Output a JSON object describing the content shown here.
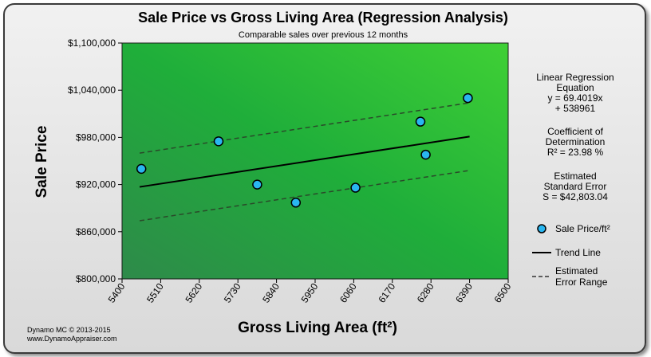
{
  "chart_data": {
    "type": "scatter",
    "title": "Sale Price vs Gross Living Area (Regression Analysis)",
    "subtitle": "Comparable sales over previous 12 months",
    "xlabel": "Gross Living Area (ft²)",
    "ylabel": "Sale Price",
    "xlim": [
      5400,
      6500
    ],
    "ylim": [
      800000,
      1100000
    ],
    "x_ticks": [
      "5400",
      "5510",
      "5620",
      "5730",
      "5840",
      "5950",
      "6060",
      "6170",
      "6280",
      "6390",
      "6500"
    ],
    "y_ticks": [
      "$800,000",
      "$860,000",
      "$920,000",
      "$980,000",
      "$1,040,000",
      "$1,100,000"
    ],
    "series": [
      {
        "name": "Sale Price/ft²",
        "x": [
          5455,
          5675,
          5785,
          5895,
          6065,
          6250,
          6265,
          6385
        ],
        "y": [
          940000,
          975000,
          920000,
          897000,
          916000,
          1000000,
          958000,
          1030000
        ]
      }
    ],
    "trend_line": {
      "name": "Trend Line",
      "x": [
        5450,
        6390
      ],
      "y": [
        917000,
        981000
      ]
    },
    "error_range": {
      "name": "Estimated Error Range",
      "upper": {
        "x": [
          5450,
          6390
        ],
        "y": [
          960000,
          1024000
        ]
      },
      "lower": {
        "x": [
          5450,
          6390
        ],
        "y": [
          874000,
          938000
        ]
      }
    },
    "legend": [
      {
        "label": "Sale Price/ft²",
        "symbol": "marker"
      },
      {
        "label": "Trend Line",
        "symbol": "solid"
      },
      {
        "label": "Estimated Error Range",
        "symbol": "dashed"
      }
    ],
    "grid": false,
    "legend_position": "right"
  },
  "annotations": {
    "regression": [
      "Linear Regression",
      "Equation",
      "y = 69.4019x",
      "+ 538961"
    ],
    "cod": [
      "Coefficient of",
      "Determination",
      "R² = 23.98 %"
    ],
    "std_error": [
      "Estimated",
      "Standard Error",
      "S = $42,803.04"
    ]
  },
  "legend_labels": {
    "marker": "Sale Price/ft²",
    "trend": "Trend Line",
    "error": [
      "Estimated",
      "Error Range"
    ]
  },
  "footer": {
    "line1": "Dynamo MC   © 2013-2015",
    "line2": "www.DynamoAppraiser.com"
  },
  "colors": {
    "plot_dark": "#2e8a4a",
    "plot_mid": "#1fae3a",
    "plot_light": "#3fd035",
    "marker_fill": "#29b6f0",
    "trend": "#000000",
    "error": "#2a4a2a"
  }
}
